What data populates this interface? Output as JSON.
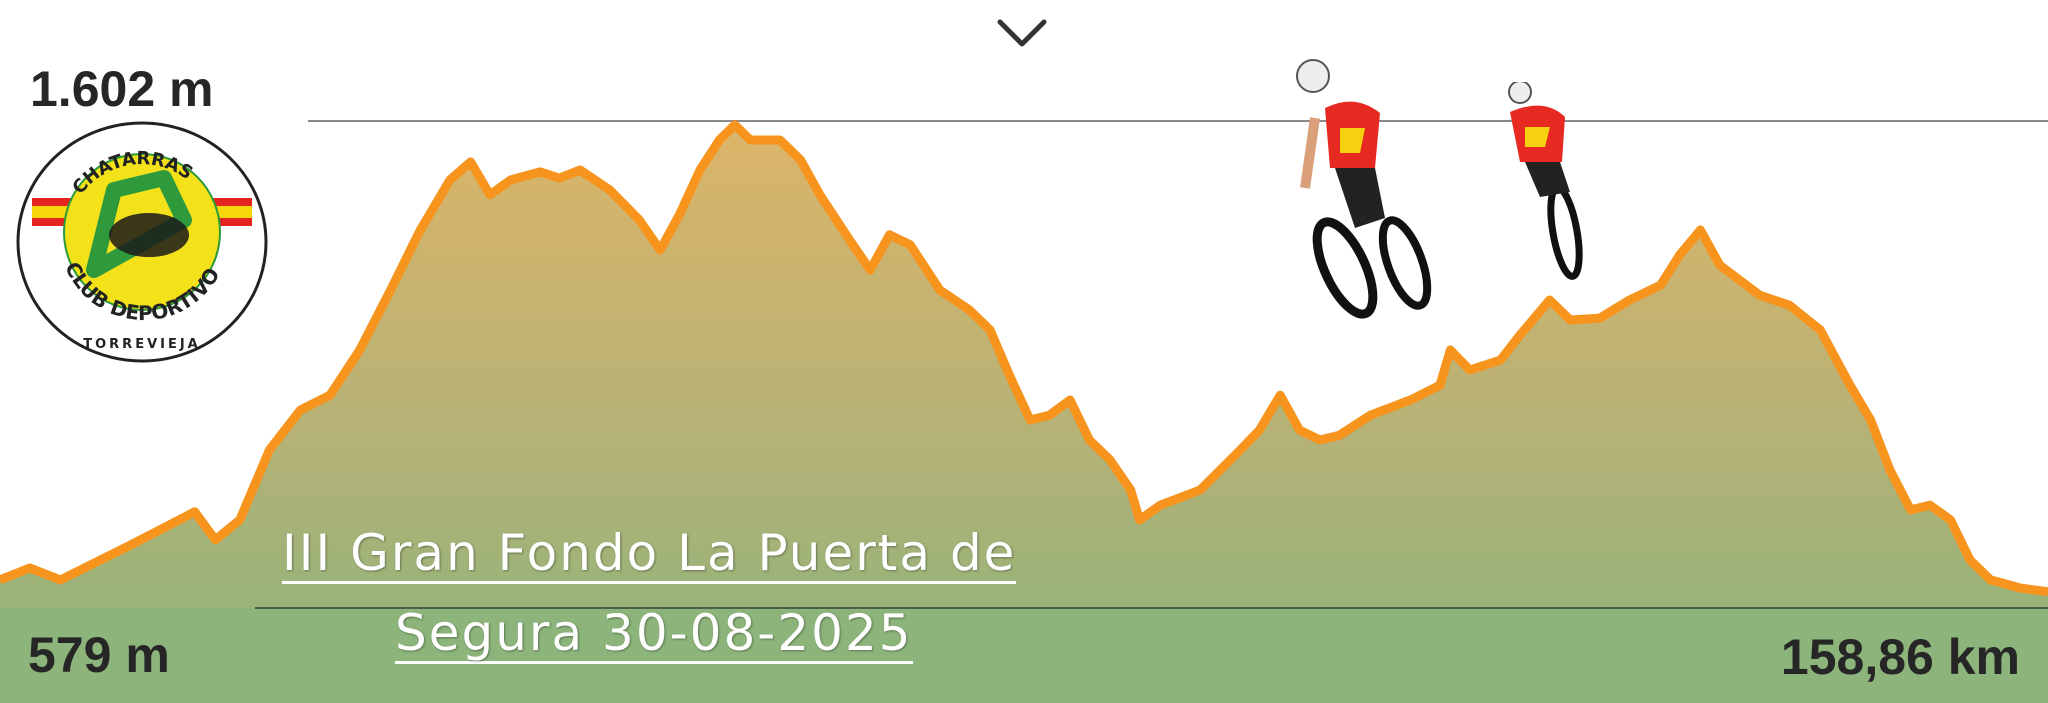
{
  "chart_data": {
    "type": "area",
    "xlabel": "",
    "ylabel": "",
    "xlim": [
      0,
      158.86
    ],
    "ylim": [
      579,
      1602
    ],
    "max_label": "1.602 m",
    "min_label": "579 m",
    "distance_label": "158,86 km",
    "grid": false,
    "colors": {
      "line": "#f7941d",
      "fill_top": "#d9b56a",
      "fill_bottom": "#8fb47a",
      "max_line": "#8a8a8a"
    },
    "points": [
      [
        0.0,
        638
      ],
      [
        2.3,
        663
      ],
      [
        4.7,
        638
      ],
      [
        7.8,
        680
      ],
      [
        10.1,
        711
      ],
      [
        12.4,
        743
      ],
      [
        15.1,
        781
      ],
      [
        16.7,
        722
      ],
      [
        18.6,
        764
      ],
      [
        20.9,
        911
      ],
      [
        23.3,
        995
      ],
      [
        25.6,
        1026
      ],
      [
        27.9,
        1121
      ],
      [
        30.3,
        1247
      ],
      [
        32.6,
        1373
      ],
      [
        34.9,
        1478
      ],
      [
        36.5,
        1516
      ],
      [
        38.0,
        1447
      ],
      [
        39.6,
        1478
      ],
      [
        41.9,
        1495
      ],
      [
        43.4,
        1482
      ],
      [
        45.0,
        1499
      ],
      [
        47.3,
        1457
      ],
      [
        49.6,
        1394
      ],
      [
        51.2,
        1331
      ],
      [
        52.7,
        1405
      ],
      [
        54.3,
        1499
      ],
      [
        55.8,
        1562
      ],
      [
        57.0,
        1594
      ],
      [
        58.2,
        1562
      ],
      [
        60.5,
        1562
      ],
      [
        62.1,
        1520
      ],
      [
        63.6,
        1447
      ],
      [
        65.9,
        1352
      ],
      [
        67.5,
        1289
      ],
      [
        69.0,
        1363
      ],
      [
        70.6,
        1342
      ],
      [
        72.9,
        1247
      ],
      [
        75.2,
        1205
      ],
      [
        76.8,
        1163
      ],
      [
        78.3,
        1068
      ],
      [
        79.9,
        974
      ],
      [
        81.4,
        984
      ],
      [
        83.0,
        1016
      ],
      [
        84.5,
        932
      ],
      [
        86.1,
        890
      ],
      [
        87.7,
        827
      ],
      [
        88.4,
        764
      ],
      [
        90.0,
        795
      ],
      [
        93.1,
        827
      ],
      [
        96.2,
        911
      ],
      [
        97.7,
        953
      ],
      [
        99.3,
        1026
      ],
      [
        100.8,
        953
      ],
      [
        102.4,
        932
      ],
      [
        103.9,
        942
      ],
      [
        106.3,
        984
      ],
      [
        109.4,
        1016
      ],
      [
        111.7,
        1047
      ],
      [
        112.5,
        1121
      ],
      [
        114.0,
        1079
      ],
      [
        116.4,
        1100
      ],
      [
        117.9,
        1152
      ],
      [
        120.2,
        1226
      ],
      [
        121.8,
        1184
      ],
      [
        124.1,
        1188
      ],
      [
        126.4,
        1226
      ],
      [
        128.8,
        1257
      ],
      [
        130.3,
        1321
      ],
      [
        131.9,
        1373
      ],
      [
        133.4,
        1299
      ],
      [
        136.5,
        1236
      ],
      [
        138.8,
        1215
      ],
      [
        141.2,
        1163
      ],
      [
        143.5,
        1047
      ],
      [
        145.1,
        974
      ],
      [
        146.6,
        869
      ],
      [
        148.2,
        785
      ],
      [
        149.7,
        795
      ],
      [
        151.3,
        764
      ],
      [
        152.8,
        680
      ],
      [
        154.4,
        638
      ],
      [
        156.7,
        621
      ],
      [
        158.86,
        613
      ]
    ]
  },
  "title": {
    "line1": "III Gran Fondo La Puerta de",
    "line2": "Segura 30-08-2025"
  },
  "logo": {
    "top_text": "CHATARRAS",
    "middle_text": "CLUB DEPORTIVO",
    "bottom_text": "TORREVIEJA"
  },
  "icons": {
    "collapse": "chevron-down-icon"
  }
}
